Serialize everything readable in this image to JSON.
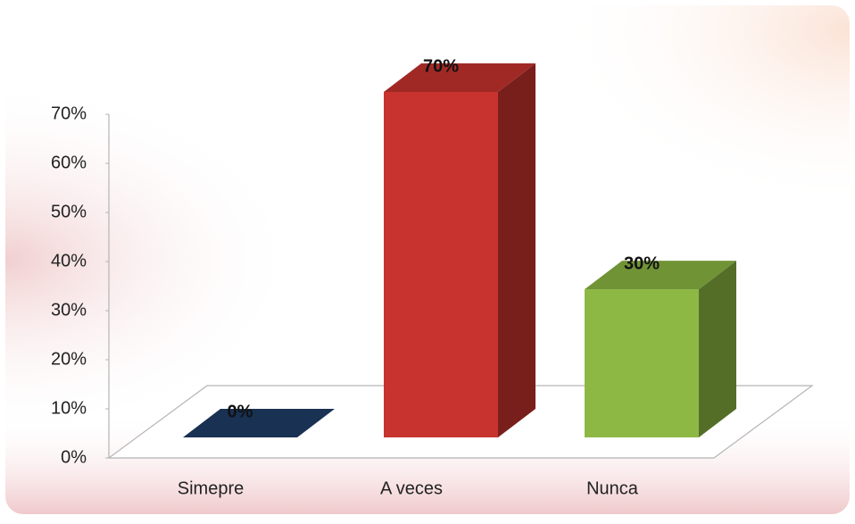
{
  "chart_data": {
    "type": "bar3d",
    "categories": [
      "Simepre",
      "A veces",
      "Nunca"
    ],
    "values": [
      0,
      70,
      30
    ],
    "value_labels": [
      "0%",
      "70%",
      "30%"
    ],
    "colors": [
      "#1f3d66",
      "#c8332f",
      "#8cb843"
    ],
    "ylim": [
      0,
      70
    ],
    "yticks": [
      {
        "value": 0,
        "label": "0%"
      },
      {
        "value": 10,
        "label": "10%"
      },
      {
        "value": 20,
        "label": "20%"
      },
      {
        "value": 30,
        "label": "30%"
      },
      {
        "value": 40,
        "label": "40%"
      },
      {
        "value": 50,
        "label": "50%"
      },
      {
        "value": 60,
        "label": "60%"
      },
      {
        "value": 70,
        "label": "70%"
      }
    ],
    "grid": false
  }
}
